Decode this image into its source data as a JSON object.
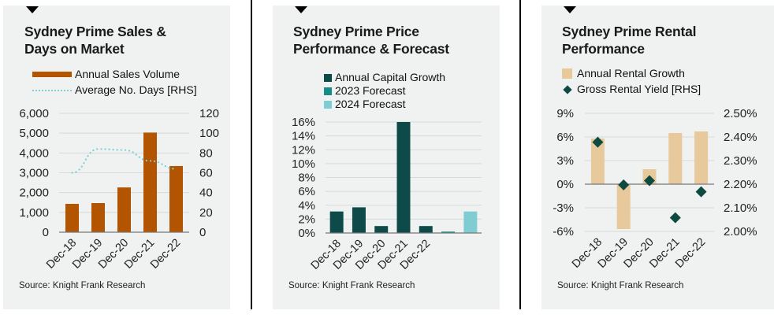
{
  "source": "Source: Knight Frank Research",
  "colors": {
    "sales": "#b35400",
    "days": "#7fcfd6",
    "growth": "#0e4a4a",
    "f2023": "#178c88",
    "f2024": "#7fcdd3",
    "rental": "#e8c99b",
    "yield": "#0e4a40",
    "grid": "#d6d9d8",
    "axis": "#777777"
  },
  "chart_data": [
    {
      "type": "bar",
      "title": "Sydney Prime Sales & Days on Market",
      "title_lines": [
        "Sydney Prime Sales &",
        "Days on Market"
      ],
      "categories": [
        "Dec-18",
        "Dec-19",
        "Dec-20",
        "Dec-21",
        "Dec-22"
      ],
      "legend": [
        "Annual Sales Volume",
        "Average No. Days [RHS]"
      ],
      "series": [
        {
          "name": "Annual Sales Volume",
          "type": "bar",
          "axis": "left",
          "values": [
            1430,
            1470,
            2260,
            5030,
            3340
          ]
        },
        {
          "name": "Average No. Days [RHS]",
          "type": "line",
          "style": "dotted",
          "axis": "right",
          "values": [
            60,
            84,
            83,
            72,
            64
          ]
        }
      ],
      "ylim": [
        0,
        6000
      ],
      "y_ticks": [
        "6,000",
        "5,000",
        "4,000",
        "3,000",
        "2,000",
        "1,000",
        "0"
      ],
      "y2lim": [
        0,
        120
      ],
      "y2_ticks": [
        "120",
        "100",
        "80",
        "60",
        "40",
        "20",
        "0"
      ],
      "grid": true,
      "legend_position": "top"
    },
    {
      "type": "bar",
      "title": "Sydney Prime Price Performance & Forecast",
      "title_lines": [
        "Sydney Prime Price",
        "Performance & Forecast"
      ],
      "categories": [
        "Dec-18",
        "Dec-19",
        "Dec-20",
        "Dec-21",
        "Dec-22",
        "",
        ""
      ],
      "legend": [
        "Annual Capital Growth",
        "2023 Forecast",
        "2024 Forecast"
      ],
      "values": [
        3.1,
        3.7,
        1.0,
        16.0,
        1.0,
        0.2,
        3.1
      ],
      "value_series": [
        "Annual Capital Growth",
        "Annual Capital Growth",
        "Annual Capital Growth",
        "Annual Capital Growth",
        "Annual Capital Growth",
        "2023 Forecast",
        "2024 Forecast"
      ],
      "ylim": [
        0,
        16
      ],
      "y_ticks": [
        "16%",
        "14%",
        "12%",
        "10%",
        "8%",
        "6%",
        "4%",
        "2%",
        "0%"
      ],
      "grid": true,
      "legend_position": "top"
    },
    {
      "type": "bar",
      "title": "Sydney Prime Rental Performance",
      "title_lines": [
        "Sydney Prime Rental",
        "Performance"
      ],
      "categories": [
        "Dec-18",
        "Dec-19",
        "Dec-20",
        "Dec-21",
        "Dec-22"
      ],
      "legend": [
        "Annual Rental Growth",
        "Gross Rental Yield [RHS]"
      ],
      "series": [
        {
          "name": "Annual Rental Growth",
          "type": "bar",
          "axis": "left",
          "values": [
            5.8,
            -5.7,
            1.9,
            6.5,
            6.7
          ]
        },
        {
          "name": "Gross Rental Yield [RHS]",
          "type": "scatter",
          "marker": "diamond",
          "axis": "right",
          "values": [
            2.378,
            2.197,
            2.215,
            2.058,
            2.168
          ]
        }
      ],
      "ylim": [
        -6,
        9
      ],
      "y_ticks": [
        "9%",
        "6%",
        "3%",
        "0%",
        "-3%",
        "-6%"
      ],
      "y2lim": [
        2.0,
        2.5
      ],
      "y2_ticks": [
        "2.50%",
        "2.40%",
        "2.30%",
        "2.20%",
        "2.10%",
        "2.00%"
      ],
      "grid": true,
      "legend_position": "top"
    }
  ]
}
